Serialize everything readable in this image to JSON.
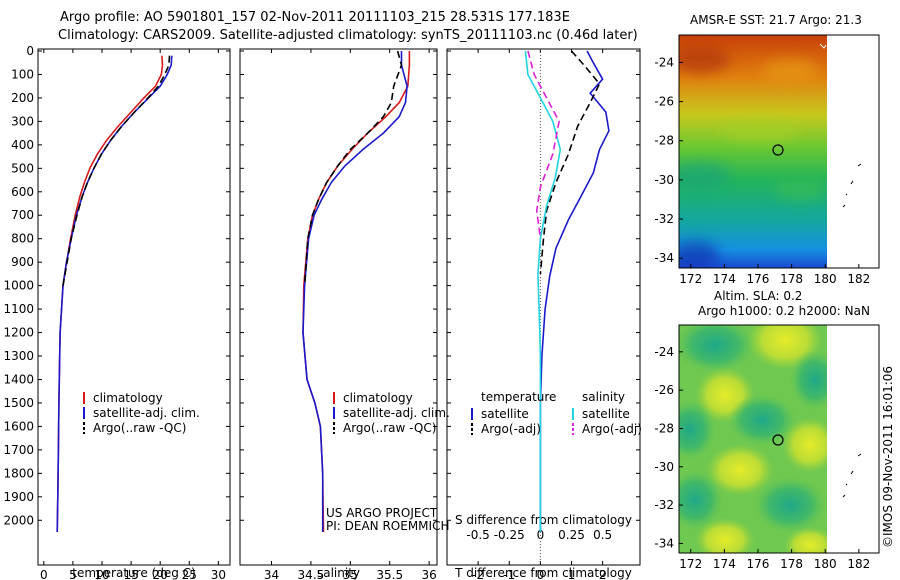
{
  "header": {
    "line1": "Argo profile: AO 5901801_157 02-Nov-2011 20111103_215 28.531S 177.183E",
    "line2": "Climatology: CARS2009. Satellite-adjusted climatology: synTS_20111103.nc (0.46d later)"
  },
  "credit": "©IMOS 09-Nov-2011 16:01:06",
  "annotation": {
    "project": "US ARGO PROJECT",
    "pi": "PI: DEAN ROEMMICH"
  },
  "colors": {
    "climatology": "#d91a1a",
    "satellite": "#1a1acc",
    "argo": "#000000",
    "salinity_sat": "#22d3e0",
    "salinity_argo": "#e020d8"
  },
  "chart_data": [
    {
      "type": "line",
      "xlabel": "temperature (deg C)",
      "ylabel": "",
      "xlim": [
        -1,
        32
      ],
      "xticks": [
        0,
        5,
        10,
        15,
        20,
        25,
        30
      ],
      "ylim": [
        0,
        2050
      ],
      "yticks": [
        0,
        100,
        200,
        300,
        400,
        500,
        600,
        700,
        800,
        900,
        1000,
        1100,
        1200,
        1300,
        1400,
        1500,
        1600,
        1700,
        1800,
        1900,
        2000
      ],
      "legend": [
        "climatology",
        "satellite-adj. clim.",
        "Argo(..raw -QC)"
      ],
      "series": [
        {
          "name": "climatology",
          "style": "solid",
          "color": "#d91a1a",
          "x": [
            20.3,
            20.4,
            20.2,
            19.2,
            17.2,
            15.0,
            12.8,
            10.8,
            9.2,
            7.9,
            7.0,
            6.2,
            5.4,
            4.6,
            3.9,
            3.3,
            2.8,
            2.6,
            2.5,
            2.4,
            2.3
          ],
          "y": [
            20,
            60,
            100,
            150,
            200,
            260,
            320,
            380,
            440,
            500,
            560,
            620,
            700,
            800,
            900,
            1000,
            1200,
            1500,
            1700,
            1900,
            2050
          ]
        },
        {
          "name": "satellite-adj. clim.",
          "style": "solid",
          "color": "#1a1acc",
          "x": [
            22.0,
            21.9,
            21.2,
            20.0,
            18.0,
            15.6,
            13.4,
            11.5,
            9.9,
            8.6,
            7.5,
            6.6,
            5.6,
            4.7,
            3.9,
            3.3,
            2.8,
            2.6,
            2.5,
            2.4,
            2.3
          ],
          "y": [
            20,
            60,
            100,
            150,
            200,
            260,
            320,
            380,
            440,
            500,
            560,
            620,
            700,
            800,
            900,
            1000,
            1200,
            1500,
            1700,
            1900,
            2050
          ]
        },
        {
          "name": "Argo(..raw -QC)",
          "style": "dashed",
          "color": "#000000",
          "x": [
            21.6,
            21.5,
            20.8,
            19.7,
            17.9,
            15.6,
            13.4,
            11.5,
            9.9,
            8.6,
            7.5,
            6.6,
            5.7,
            4.7,
            4.0,
            3.3
          ],
          "y": [
            20,
            60,
            100,
            150,
            200,
            260,
            320,
            380,
            440,
            500,
            560,
            620,
            700,
            800,
            900,
            1000
          ]
        }
      ]
    },
    {
      "type": "line",
      "xlabel": "salinity",
      "ylabel": "",
      "xlim": [
        33.6,
        36.1
      ],
      "xticks": [
        34,
        34.5,
        35,
        35.5,
        36
      ],
      "ylim": [
        0,
        2050
      ],
      "legend": [
        "climatology",
        "satellite-adj. clim.",
        "Argo(..raw -QC)"
      ],
      "series": [
        {
          "name": "climatology",
          "style": "solid",
          "color": "#d91a1a",
          "x": [
            35.75,
            35.75,
            35.73,
            35.62,
            35.45,
            35.22,
            35.02,
            34.84,
            34.7,
            34.6,
            34.52,
            34.46,
            34.41,
            34.4,
            34.45,
            34.55,
            34.62,
            34.65,
            34.66
          ],
          "y": [
            0,
            60,
            150,
            220,
            280,
            350,
            420,
            490,
            560,
            630,
            700,
            800,
            1000,
            1200,
            1400,
            1500,
            1600,
            1800,
            2050
          ]
        },
        {
          "name": "satellite-adj. clim.",
          "style": "solid",
          "color": "#1a1acc",
          "x": [
            35.65,
            35.65,
            35.72,
            35.7,
            35.62,
            35.42,
            35.16,
            34.93,
            34.76,
            34.64,
            34.54,
            34.47,
            34.42,
            34.4,
            34.45,
            34.55,
            34.62,
            34.65,
            34.65
          ],
          "y": [
            0,
            60,
            150,
            220,
            280,
            350,
            420,
            490,
            560,
            630,
            700,
            800,
            1000,
            1200,
            1400,
            1500,
            1600,
            1800,
            2050
          ]
        },
        {
          "name": "Argo(..raw -QC)",
          "style": "dashed",
          "color": "#000000",
          "x": [
            35.6,
            35.65,
            35.55,
            35.52,
            35.42,
            35.22,
            35.0,
            34.84,
            34.7,
            34.6,
            34.52,
            34.46,
            34.42
          ],
          "y": [
            0,
            60,
            150,
            220,
            280,
            350,
            420,
            490,
            560,
            630,
            700,
            800,
            1000
          ]
        }
      ]
    },
    {
      "type": "line",
      "xlabel": "T difference from climatology",
      "ylabel": "",
      "x2label": "S difference from climatology",
      "xlim": [
        -3,
        3.2
      ],
      "xticks": [
        -2,
        -1,
        0,
        1,
        2
      ],
      "x2lim": [
        -0.75,
        0.8
      ],
      "x2ticks": [
        -0.5,
        -0.25,
        0,
        0.25,
        0.5
      ],
      "ylim": [
        0,
        2050
      ],
      "legend_temperature": {
        "title": "temperature",
        "items": [
          "satellite",
          "Argo(-adj)"
        ]
      },
      "legend_salinity": {
        "title": "salinity",
        "items": [
          "satellite",
          "Argo(-adj)"
        ]
      },
      "series": [
        {
          "name": "temperature satellite",
          "axis": "T",
          "style": "solid",
          "color": "#1a1acc",
          "x": [
            1.5,
            1.7,
            2.0,
            1.6,
            2.1,
            2.2,
            1.9,
            1.7,
            1.3,
            0.9,
            0.5,
            0.3,
            0.15,
            0.05,
            0.0,
            0.0,
            0.0
          ],
          "y": [
            0,
            50,
            120,
            180,
            260,
            340,
            420,
            520,
            620,
            720,
            840,
            960,
            1100,
            1300,
            1500,
            1800,
            2050
          ]
        },
        {
          "name": "temperature Argo(-adj)",
          "axis": "T",
          "style": "dashed",
          "color": "#000000",
          "x": [
            1.0,
            1.4,
            1.9,
            1.6,
            1.2,
            0.9,
            0.5,
            0.2,
            0.1,
            0.0
          ],
          "y": [
            0,
            60,
            140,
            220,
            320,
            440,
            560,
            680,
            800,
            950
          ]
        },
        {
          "name": "salinity satellite",
          "axis": "S",
          "style": "solid",
          "color": "#22d3e0",
          "x": [
            -0.12,
            -0.1,
            0.0,
            0.1,
            0.16,
            0.12,
            0.05,
            0.0,
            -0.02,
            -0.01,
            0.0,
            0.0,
            0.0
          ],
          "y": [
            0,
            100,
            200,
            300,
            420,
            540,
            660,
            800,
            950,
            1100,
            1300,
            1500,
            2050
          ]
        },
        {
          "name": "salinity Argo(-adj)",
          "axis": "S",
          "style": "dashed",
          "color": "#e020d8",
          "x": [
            -0.1,
            -0.05,
            0.05,
            0.15,
            0.1,
            0.0,
            -0.03,
            0.0
          ],
          "y": [
            0,
            100,
            200,
            300,
            440,
            580,
            680,
            800
          ]
        }
      ]
    },
    {
      "type": "heatmap",
      "title": "AMSR-E SST: 21.7 Argo: 21.3",
      "xlim": [
        171.3,
        183.2
      ],
      "xticks": [
        172,
        174,
        176,
        178,
        180,
        182
      ],
      "ylim": [
        -34.5,
        -22.6
      ],
      "yticks": [
        -24,
        -26,
        -28,
        -30,
        -32,
        -34
      ],
      "marker": {
        "lon": 177.18,
        "lat": -28.53
      }
    },
    {
      "type": "heatmap",
      "title": "Altim. SLA: 0.2",
      "subtitle": "Argo h1000: 0.2 h2000: NaN",
      "xlim": [
        171.3,
        183.2
      ],
      "xticks": [
        172,
        174,
        176,
        178,
        180,
        182
      ],
      "ylim": [
        -34.5,
        -22.6
      ],
      "yticks": [
        -24,
        -26,
        -28,
        -30,
        -32,
        -34
      ],
      "marker": {
        "lon": 177.18,
        "lat": -28.53
      }
    }
  ]
}
